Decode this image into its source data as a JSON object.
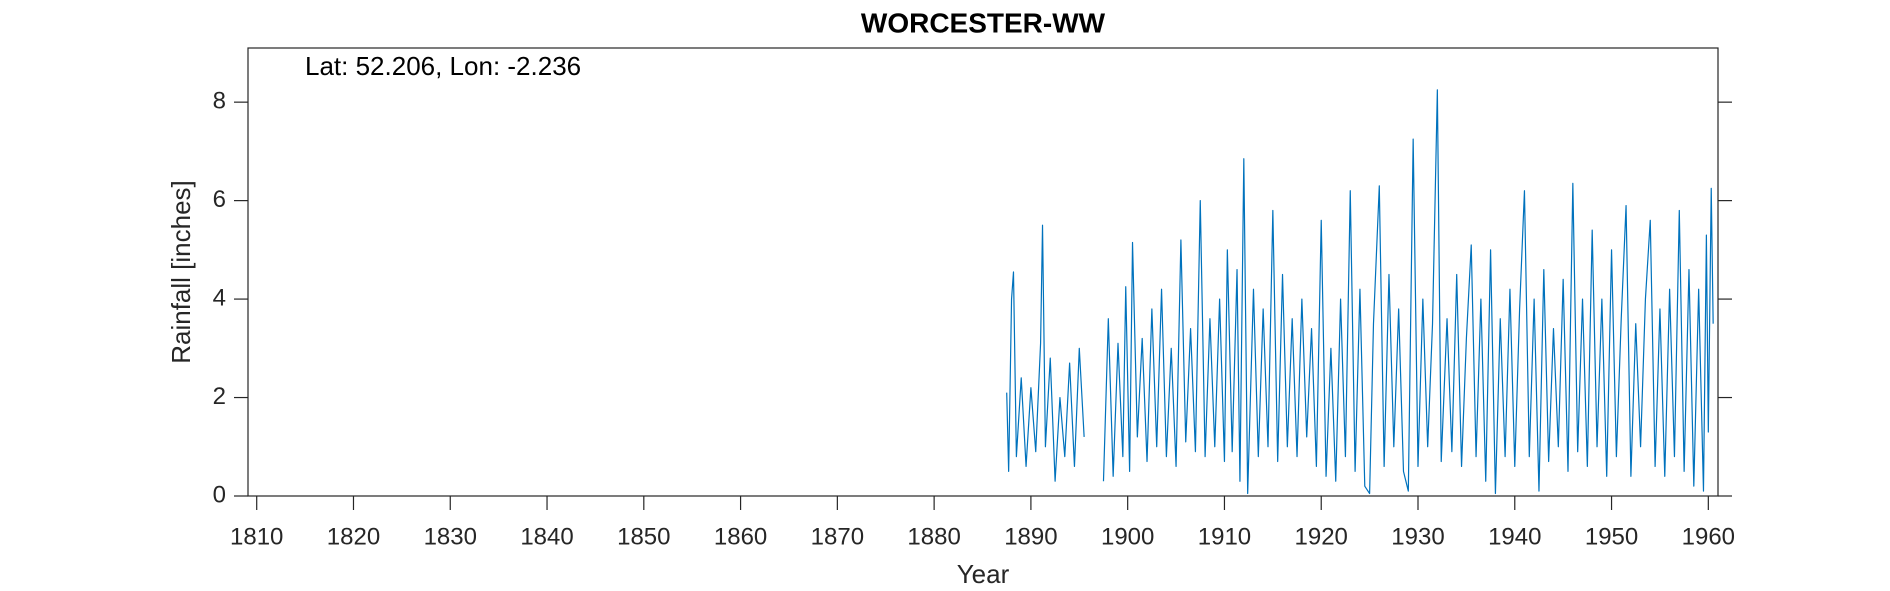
{
  "chart_data": {
    "type": "line",
    "title": "WORCESTER-WW",
    "annotation": "Lat: 52.206, Lon: -2.236",
    "x_label": "Year",
    "y_label": "Rainfall [inches]",
    "xlim": [
      1809.1,
      1961
    ],
    "ylim": [
      0,
      9.1
    ],
    "xticks": [
      1810,
      1820,
      1830,
      1840,
      1850,
      1860,
      1870,
      1880,
      1890,
      1900,
      1910,
      1920,
      1930,
      1940,
      1950,
      1960
    ],
    "yticks": [
      0,
      2,
      4,
      6,
      8
    ],
    "grid": false,
    "series": [
      {
        "name": "Rainfall",
        "color": "#0072bd",
        "x": [
          1887.5,
          1887.7,
          1888.0,
          1888.2,
          1888.5,
          1889.0,
          1889.5,
          1890.0,
          1890.5,
          1891.0,
          1891.2,
          1891.5,
          1892.0,
          1892.5,
          1893.0,
          1893.5,
          1894.0,
          1894.5,
          1895.0,
          1895.5,
          1896.5,
          1897.5,
          1898.0,
          1898.5,
          1899.0,
          1899.5,
          1899.8,
          1900.2,
          1900.5,
          1901.0,
          1901.5,
          1902.0,
          1902.5,
          1903.0,
          1903.5,
          1904.0,
          1904.5,
          1905.0,
          1905.5,
          1906.0,
          1906.5,
          1907.0,
          1907.5,
          1908.0,
          1908.5,
          1909.0,
          1909.5,
          1910.0,
          1910.3,
          1910.8,
          1911.3,
          1911.6,
          1912.0,
          1912.4,
          1913.0,
          1913.5,
          1914.0,
          1914.5,
          1915.0,
          1915.5,
          1916.0,
          1916.5,
          1917.0,
          1917.5,
          1918.0,
          1918.5,
          1919.0,
          1919.5,
          1920.0,
          1920.5,
          1921.0,
          1921.5,
          1922.0,
          1922.5,
          1923.0,
          1923.5,
          1924.0,
          1924.5,
          1925.0,
          1925.4,
          1926.0,
          1926.5,
          1927.0,
          1927.5,
          1928.0,
          1928.5,
          1929.0,
          1929.5,
          1930.0,
          1930.5,
          1931.0,
          1931.5,
          1932.0,
          1932.4,
          1933.0,
          1933.5,
          1934.0,
          1934.5,
          1935.0,
          1935.5,
          1936.0,
          1936.5,
          1937.0,
          1937.5,
          1938.0,
          1938.5,
          1939.0,
          1939.5,
          1940.0,
          1940.5,
          1941.0,
          1941.5,
          1942.0,
          1942.5,
          1943.0,
          1943.5,
          1944.0,
          1944.5,
          1945.0,
          1945.5,
          1946.0,
          1946.5,
          1947.0,
          1947.5,
          1948.0,
          1948.5,
          1949.0,
          1949.5,
          1950.0,
          1950.5,
          1951.0,
          1951.5,
          1952.0,
          1952.5,
          1953.0,
          1953.5,
          1954.0,
          1954.5,
          1955.0,
          1955.5,
          1956.0,
          1956.5,
          1957.0,
          1957.5,
          1958.0,
          1958.5,
          1959.0,
          1959.5,
          1959.8,
          1960.0,
          1960.3,
          1960.5
        ],
        "values": [
          2.1,
          0.5,
          4.0,
          4.55,
          0.8,
          2.4,
          0.6,
          2.2,
          0.9,
          3.1,
          5.5,
          1.0,
          2.8,
          0.3,
          2.0,
          0.8,
          2.7,
          0.6,
          3.0,
          1.2,
          null,
          0.3,
          3.6,
          0.4,
          3.1,
          0.8,
          4.25,
          0.5,
          5.15,
          1.2,
          3.2,
          0.7,
          3.8,
          1.0,
          4.2,
          0.8,
          3.0,
          0.6,
          5.2,
          1.1,
          3.4,
          0.9,
          6.0,
          0.8,
          3.6,
          1.0,
          4.0,
          0.7,
          5.0,
          0.9,
          4.6,
          0.3,
          6.85,
          0.05,
          4.2,
          0.8,
          3.8,
          1.0,
          5.8,
          0.7,
          4.5,
          1.0,
          3.6,
          0.8,
          4.0,
          1.2,
          3.4,
          0.6,
          5.6,
          0.4,
          3.0,
          0.3,
          4.0,
          0.8,
          6.2,
          0.5,
          4.2,
          0.2,
          0.05,
          3.5,
          6.3,
          0.6,
          4.5,
          1.0,
          3.8,
          0.5,
          0.1,
          7.25,
          0.6,
          4.0,
          1.0,
          3.5,
          8.25,
          0.7,
          3.6,
          0.9,
          4.5,
          0.6,
          3.2,
          5.1,
          0.8,
          4.0,
          0.3,
          5.0,
          0.05,
          3.6,
          0.8,
          4.2,
          0.6,
          3.8,
          6.2,
          0.8,
          4.0,
          0.1,
          4.6,
          0.7,
          3.4,
          1.0,
          4.4,
          0.5,
          6.35,
          0.9,
          4.0,
          0.6,
          5.4,
          1.0,
          4.0,
          0.4,
          5.0,
          0.8,
          3.6,
          5.9,
          0.4,
          3.5,
          1.0,
          4.0,
          5.6,
          0.6,
          3.8,
          0.4,
          4.2,
          0.8,
          5.8,
          0.5,
          4.6,
          0.2,
          4.2,
          0.1,
          5.3,
          1.3,
          6.25,
          3.5
        ]
      }
    ]
  }
}
